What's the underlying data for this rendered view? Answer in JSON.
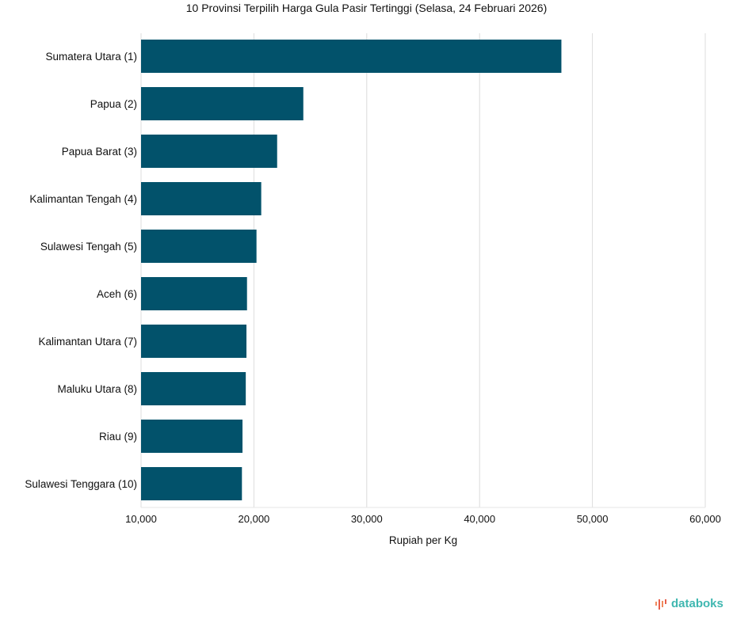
{
  "chart_data": {
    "type": "bar",
    "orientation": "horizontal",
    "title": "10 Provinsi Terpilih Harga Gula Pasir Tertinggi (Selasa, 24 Februari 2026)",
    "xlabel": "Rupiah per Kg",
    "ylabel": "",
    "xlim": [
      10000,
      60000
    ],
    "xticks": [
      10000,
      20000,
      30000,
      40000,
      50000,
      60000
    ],
    "xtick_labels": [
      "10,000",
      "20,000",
      "30,000",
      "40,000",
      "50,000",
      "60,000"
    ],
    "categories": [
      "Sumatera Utara (1)",
      "Papua (2)",
      "Papua Barat (3)",
      "Kalimantan Tengah (4)",
      "Sulawesi Tengah (5)",
      "Aceh (6)",
      "Kalimantan Utara (7)",
      "Maluku Utara (8)",
      "Riau (9)",
      "Sulawesi Tenggara (10)"
    ],
    "values": [
      47250,
      24380,
      22060,
      20650,
      20230,
      19390,
      19340,
      19280,
      18990,
      18940
    ],
    "bar_color": "#02526b",
    "grid": true
  },
  "brand": {
    "logo_text": "databoks",
    "color": "#3fb7b0"
  }
}
